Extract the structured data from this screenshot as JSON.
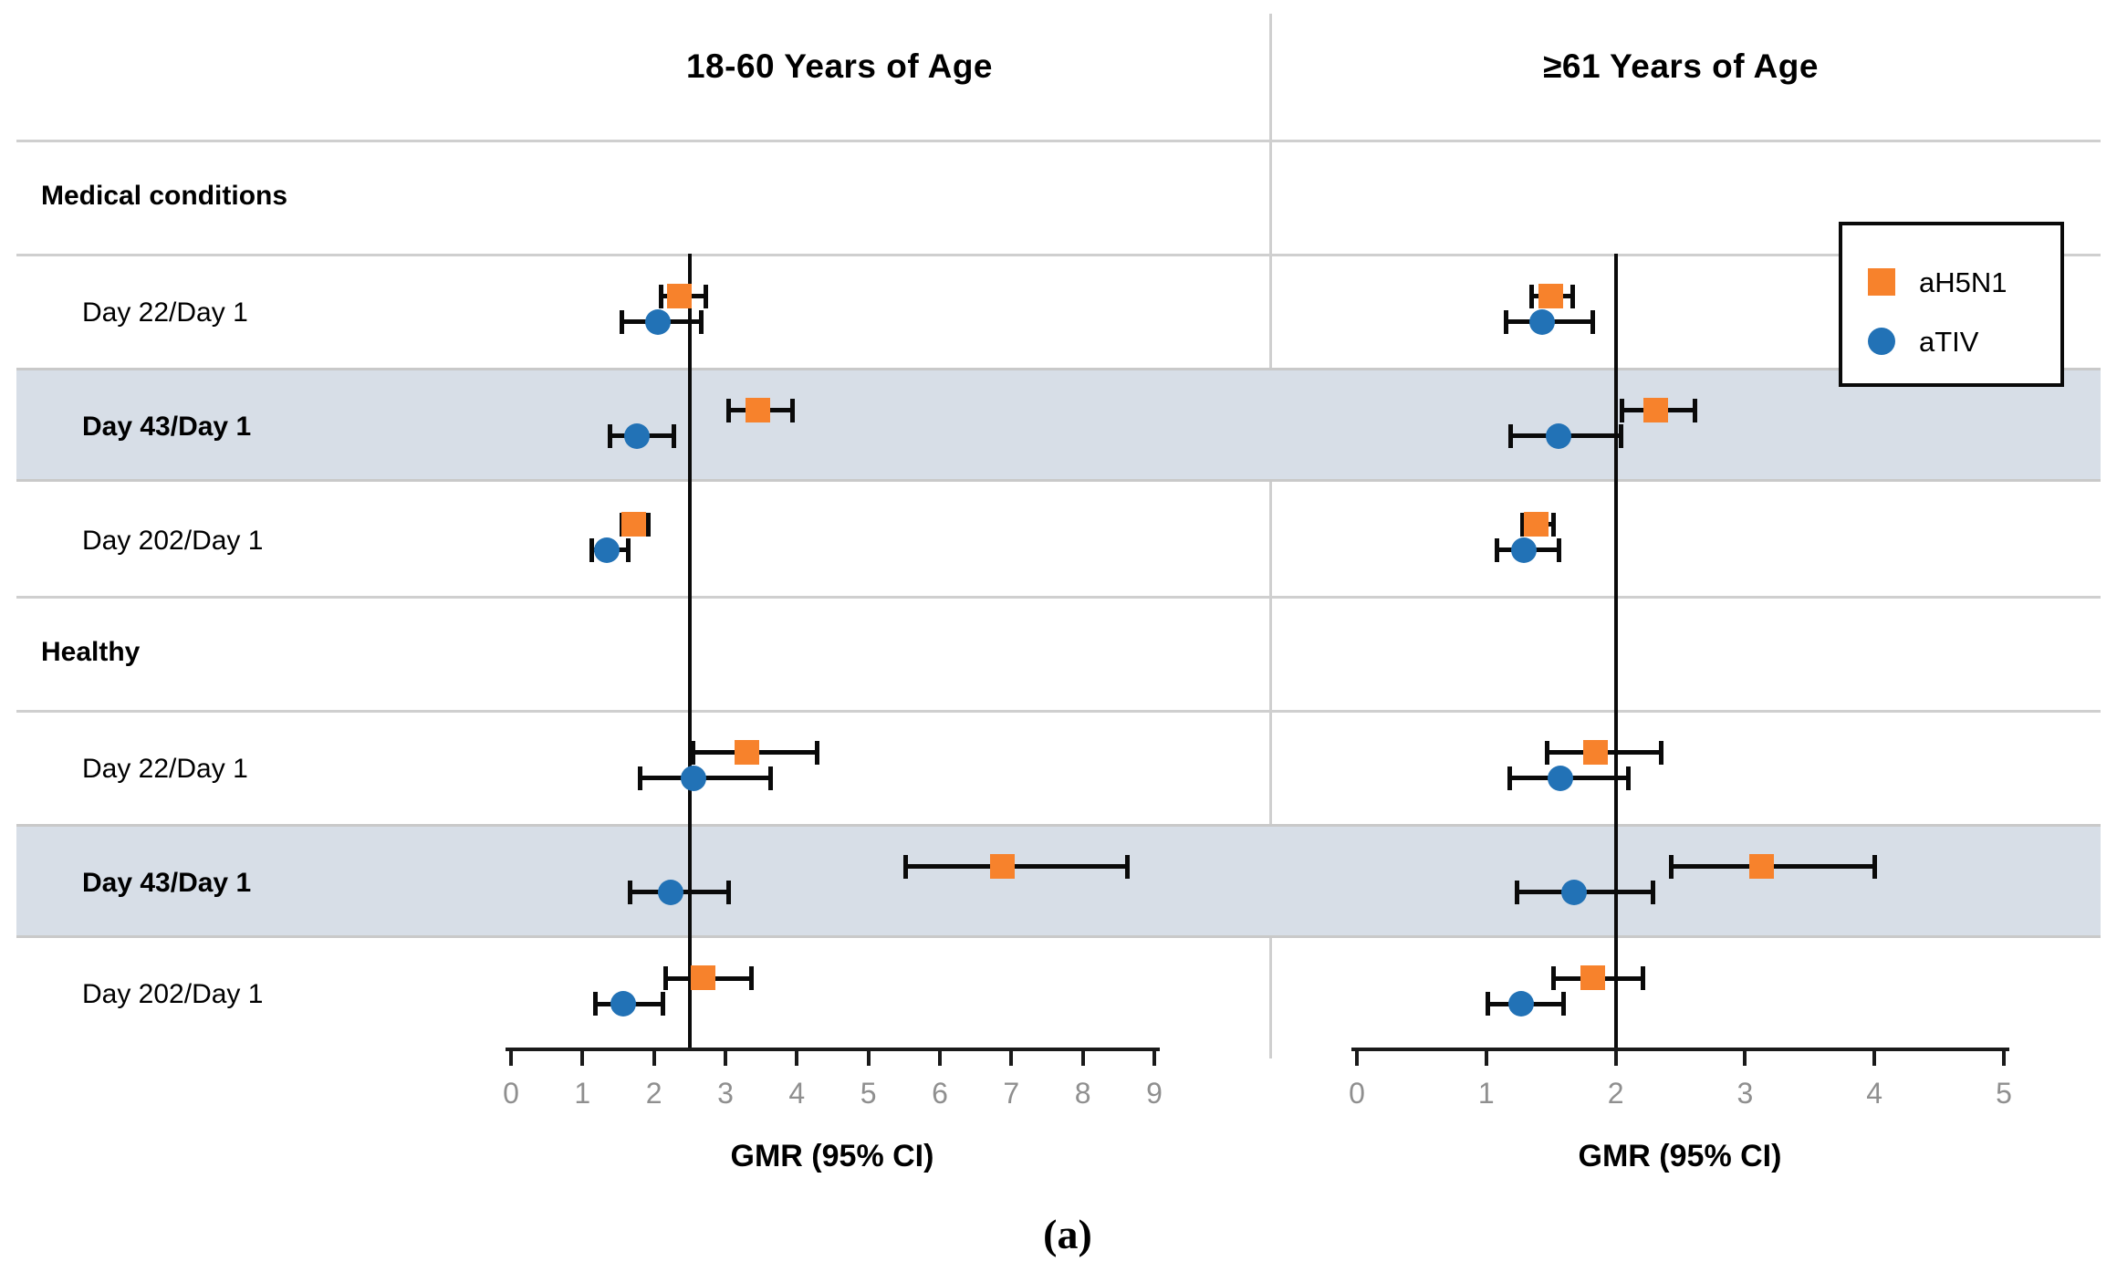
{
  "chart_data": {
    "type": "forest",
    "caption": "(a)",
    "legend": [
      {
        "label": "aH5N1",
        "marker": "square",
        "color": "#F7822C"
      },
      {
        "label": "aTIV",
        "marker": "circle",
        "color": "#2272B6"
      }
    ],
    "series_order": [
      "aH5N1",
      "aTIV"
    ],
    "shaded_row_color": "#d7dee7",
    "panels": [
      {
        "title": "18-60 Years of Age",
        "xlabel": "GMR (95% CI)",
        "xlim": [
          0,
          9
        ],
        "xticks": [
          0,
          1,
          2,
          3,
          4,
          5,
          6,
          7,
          8,
          9
        ],
        "ref_line": 2.5,
        "groups": [
          {
            "name": "Medical conditions",
            "rows": [
              {
                "label": "Day 22/Day 1",
                "emphasized": false,
                "aH5N1": {
                  "gmr": 2.36,
                  "lo": 2.1,
                  "hi": 2.72
                },
                "aTIV": {
                  "gmr": 2.05,
                  "lo": 1.55,
                  "hi": 2.66
                }
              },
              {
                "label": "Day 43/Day 1",
                "emphasized": true,
                "aH5N1": {
                  "gmr": 3.46,
                  "lo": 3.04,
                  "hi": 3.94
                },
                "aTIV": {
                  "gmr": 1.76,
                  "lo": 1.38,
                  "hi": 2.28
                }
              },
              {
                "label": "Day 202/Day 1",
                "emphasized": false,
                "aH5N1": {
                  "gmr": 1.72,
                  "lo": 1.55,
                  "hi": 1.92
                },
                "aTIV": {
                  "gmr": 1.34,
                  "lo": 1.13,
                  "hi": 1.64
                }
              }
            ]
          },
          {
            "name": "Healthy",
            "rows": [
              {
                "label": "Day 22/Day 1",
                "emphasized": false,
                "aH5N1": {
                  "gmr": 3.3,
                  "lo": 2.55,
                  "hi": 4.28
                },
                "aTIV": {
                  "gmr": 2.55,
                  "lo": 1.81,
                  "hi": 3.63
                }
              },
              {
                "label": "Day 43/Day 1",
                "emphasized": true,
                "aH5N1": {
                  "gmr": 6.88,
                  "lo": 5.52,
                  "hi": 8.62
                },
                "aTIV": {
                  "gmr": 2.23,
                  "lo": 1.67,
                  "hi": 3.05
                }
              },
              {
                "label": "Day 202/Day 1",
                "emphasized": false,
                "aH5N1": {
                  "gmr": 2.69,
                  "lo": 2.16,
                  "hi": 3.36
                },
                "aTIV": {
                  "gmr": 1.57,
                  "lo": 1.18,
                  "hi": 2.12
                }
              }
            ]
          }
        ]
      },
      {
        "title": "≥61 Years of Age",
        "xlabel": "GMR (95% CI)",
        "xlim": [
          0,
          5
        ],
        "xticks": [
          0,
          1,
          2,
          3,
          4,
          5
        ],
        "ref_line": 2,
        "groups": [
          {
            "name": "Medical conditions",
            "rows": [
              {
                "label": "Day 22/Day 1",
                "emphasized": false,
                "aH5N1": {
                  "gmr": 1.5,
                  "lo": 1.35,
                  "hi": 1.67
                },
                "aTIV": {
                  "gmr": 1.43,
                  "lo": 1.15,
                  "hi": 1.82
                }
              },
              {
                "label": "Day 43/Day 1",
                "emphasized": true,
                "aH5N1": {
                  "gmr": 2.31,
                  "lo": 2.05,
                  "hi": 2.61
                },
                "aTIV": {
                  "gmr": 1.56,
                  "lo": 1.19,
                  "hi": 2.04
                }
              },
              {
                "label": "Day 202/Day 1",
                "emphasized": false,
                "aH5N1": {
                  "gmr": 1.39,
                  "lo": 1.28,
                  "hi": 1.52
                },
                "aTIV": {
                  "gmr": 1.29,
                  "lo": 1.08,
                  "hi": 1.56
                }
              }
            ]
          },
          {
            "name": "Healthy",
            "rows": [
              {
                "label": "Day 22/Day 1",
                "emphasized": false,
                "aH5N1": {
                  "gmr": 1.85,
                  "lo": 1.47,
                  "hi": 2.35
                },
                "aTIV": {
                  "gmr": 1.57,
                  "lo": 1.18,
                  "hi": 2.1
                }
              },
              {
                "label": "Day 43/Day 1",
                "emphasized": true,
                "aH5N1": {
                  "gmr": 3.13,
                  "lo": 2.43,
                  "hi": 4.0
                },
                "aTIV": {
                  "gmr": 1.68,
                  "lo": 1.24,
                  "hi": 2.29
                }
              },
              {
                "label": "Day 202/Day 1",
                "emphasized": false,
                "aH5N1": {
                  "gmr": 1.83,
                  "lo": 1.52,
                  "hi": 2.21
                },
                "aTIV": {
                  "gmr": 1.27,
                  "lo": 1.01,
                  "hi": 1.6
                }
              }
            ]
          }
        ]
      }
    ]
  }
}
